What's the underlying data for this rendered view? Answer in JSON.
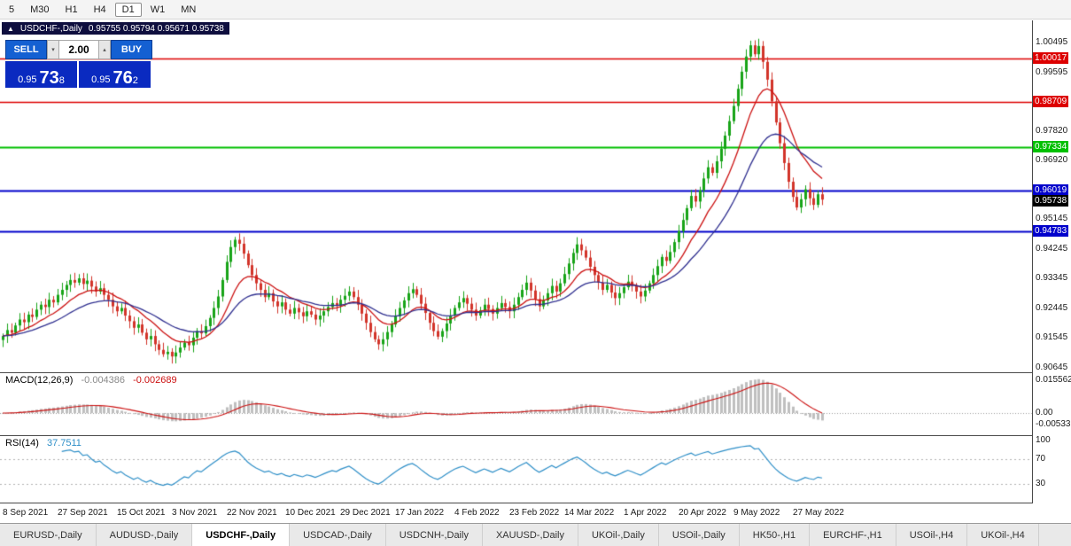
{
  "toolbar": {
    "timeframes": [
      "5",
      "M30",
      "H1",
      "H4",
      "D1",
      "W1",
      "MN"
    ],
    "active": "D1"
  },
  "header": {
    "arrow": "▲",
    "symbol_timeframe": "USDCHF-,Daily",
    "ohlc": "0.95755 0.95794 0.95671 0.95738"
  },
  "trade_panel": {
    "sell_label": "SELL",
    "buy_label": "BUY",
    "lot_size": "2.00",
    "spin_down": "▾",
    "spin_up": "▴",
    "sell_price_prefix": "0.95",
    "sell_price_big": "73",
    "sell_price_sup": "8",
    "buy_price_prefix": "0.95",
    "buy_price_big": "76",
    "buy_price_sup": "2",
    "button_color": "#1460d2",
    "price_bg_color": "#0a2ac0"
  },
  "chart_data": {
    "type": "candlestick",
    "symbol": "USDCHF-",
    "timeframe": "Daily",
    "ohlc_display": {
      "open": "0.95755",
      "high": "0.95794",
      "low": "0.95671",
      "close": "0.95738"
    },
    "bull_color": "#18a418",
    "bear_color": "#d2342a",
    "price_axis_ticks": [
      {
        "label": "1.00495",
        "value": 1.00495
      },
      {
        "label": "0.99595",
        "value": 0.99595
      },
      {
        "label": "0.97820",
        "value": 0.9782
      },
      {
        "label": "0.96920",
        "value": 0.9692
      },
      {
        "label": "0.95145",
        "value": 0.95145
      },
      {
        "label": "0.94245",
        "value": 0.94245
      },
      {
        "label": "0.93345",
        "value": 0.93345
      },
      {
        "label": "0.92445",
        "value": 0.92445
      },
      {
        "label": "0.91545",
        "value": 0.91545
      },
      {
        "label": "0.90645",
        "value": 0.90645
      }
    ],
    "h_lines": [
      {
        "label": "1.00017",
        "price": 1.00017,
        "color": "#dd0000",
        "width": 1.5
      },
      {
        "label": "0.98709",
        "price": 0.98709,
        "color": "#dd0000",
        "width": 1.5
      },
      {
        "label": "0.97334",
        "price": 0.97334,
        "color": "#00c000",
        "width": 2
      },
      {
        "label": "0.96019",
        "price": 0.96019,
        "color": "#0000cc",
        "width": 2
      },
      {
        "label": "0.94783",
        "price": 0.94783,
        "color": "#0000cc",
        "width": 2
      }
    ],
    "current_price": {
      "label": "0.95738",
      "value": 0.95738,
      "color": "#000000"
    },
    "x_labels": [
      {
        "label": "8 Sep 2021",
        "index": 0
      },
      {
        "label": "27 Sep 2021",
        "index": 13
      },
      {
        "label": "15 Oct 2021",
        "index": 27
      },
      {
        "label": "3 Nov 2021",
        "index": 40
      },
      {
        "label": "22 Nov 2021",
        "index": 53
      },
      {
        "label": "10 Dec 2021",
        "index": 67
      },
      {
        "label": "29 Dec 2021",
        "index": 80
      },
      {
        "label": "17 Jan 2022",
        "index": 93
      },
      {
        "label": "4 Feb 2022",
        "index": 107
      },
      {
        "label": "23 Feb 2022",
        "index": 120
      },
      {
        "label": "14 Mar 2022",
        "index": 133
      },
      {
        "label": "1 Apr 2022",
        "index": 147
      },
      {
        "label": "20 Apr 2022",
        "index": 160
      },
      {
        "label": "9 May 2022",
        "index": 173
      },
      {
        "label": "27 May 2022",
        "index": 187
      }
    ],
    "closes": [
      0.916,
      0.9178,
      0.917,
      0.9192,
      0.921,
      0.9202,
      0.9225,
      0.9218,
      0.924,
      0.9255,
      0.9248,
      0.927,
      0.9262,
      0.9285,
      0.93,
      0.9315,
      0.933,
      0.9322,
      0.9335,
      0.9318,
      0.9328,
      0.931,
      0.9295,
      0.9305,
      0.9285,
      0.927,
      0.925,
      0.9235,
      0.9245,
      0.9222,
      0.9205,
      0.9185,
      0.9195,
      0.917,
      0.915,
      0.916,
      0.9135,
      0.9118,
      0.9105,
      0.9112,
      0.9098,
      0.911,
      0.9125,
      0.914,
      0.9132,
      0.9155,
      0.9175,
      0.9168,
      0.919,
      0.9215,
      0.9245,
      0.928,
      0.933,
      0.9385,
      0.943,
      0.9452,
      0.944,
      0.941,
      0.9375,
      0.9345,
      0.932,
      0.93,
      0.9278,
      0.929,
      0.9265,
      0.925,
      0.9262,
      0.924,
      0.9228,
      0.9245,
      0.9232,
      0.922,
      0.9235,
      0.9225,
      0.921,
      0.9222,
      0.9235,
      0.9248,
      0.926,
      0.9252,
      0.927,
      0.9282,
      0.9295,
      0.9278,
      0.9255,
      0.9228,
      0.92,
      0.9172,
      0.915,
      0.9135,
      0.915,
      0.9172,
      0.9195,
      0.922,
      0.9245,
      0.9268,
      0.929,
      0.9302,
      0.9285,
      0.9258,
      0.923,
      0.92,
      0.9175,
      0.9158,
      0.9175,
      0.9198,
      0.9222,
      0.9245,
      0.9262,
      0.9275,
      0.9258,
      0.924,
      0.9222,
      0.9238,
      0.9255,
      0.9242,
      0.9228,
      0.9245,
      0.926,
      0.9248,
      0.9235,
      0.9255,
      0.9278,
      0.93,
      0.9322,
      0.9298,
      0.9272,
      0.925,
      0.9268,
      0.929,
      0.9312,
      0.9295,
      0.932,
      0.9348,
      0.938,
      0.9412,
      0.9438,
      0.942,
      0.9398,
      0.937,
      0.9345,
      0.9322,
      0.93,
      0.9315,
      0.9292,
      0.9275,
      0.929,
      0.9308,
      0.9325,
      0.9312,
      0.9295,
      0.928,
      0.9298,
      0.932,
      0.9345,
      0.9372,
      0.94,
      0.9388,
      0.9415,
      0.9445,
      0.9478,
      0.9512,
      0.9548,
      0.9585,
      0.9568,
      0.9602,
      0.9638,
      0.9672,
      0.9655,
      0.969,
      0.9728,
      0.9768,
      0.9812,
      0.9858,
      0.991,
      0.9962,
      1.0008,
      1.0042,
      1.0015,
      1.004,
      0.9992,
      0.9938,
      0.9872,
      0.9808,
      0.9745,
      0.9685,
      0.9628,
      0.9582,
      0.955,
      0.9575,
      0.9605,
      0.9578,
      0.9558,
      0.959,
      0.9574
    ],
    "candle_derivation": {
      "open_rule": "previous_close",
      "wick_base": 0.0022
    },
    "moving_averages": [
      {
        "period": 12,
        "type": "ema",
        "color": "#cc1111"
      },
      {
        "period": 26,
        "type": "ema",
        "color": "#303090"
      }
    ],
    "macd": {
      "label": "MACD(12,26,9)",
      "fast": 12,
      "slow": 26,
      "signal": 9,
      "value": "-0.004386",
      "signal_value": "-0.002689",
      "axis": [
        {
          "label": "0.015562",
          "value": 0.015562
        },
        {
          "label": "0.00",
          "value": 0
        },
        {
          "label": "-0.005335",
          "value": -0.005335
        }
      ],
      "hist_color": "#bfbfbf",
      "line_color": "#cc1111"
    },
    "rsi": {
      "label": "RSI(14)",
      "period": 14,
      "value": "37.7511",
      "levels": [
        {
          "label": "100",
          "value": 100,
          "line": false
        },
        {
          "label": "70",
          "value": 70,
          "line": true
        },
        {
          "label": "30",
          "value": 30,
          "line": true
        }
      ],
      "color": "#2e8fc8"
    }
  },
  "bottom_tabs": {
    "active_index": 2,
    "tabs": [
      "EURUSD-,Daily",
      "AUDUSD-,Daily",
      "USDCHF-,Daily",
      "USDCAD-,Daily",
      "USDCNH-,Daily",
      "XAUUSD-,Daily",
      "UKOil-,Daily",
      "USOil-,Daily",
      "HK50-,H1",
      "EURCHF-,H1",
      "USOil-,H4",
      "UKOil-,H4"
    ]
  }
}
